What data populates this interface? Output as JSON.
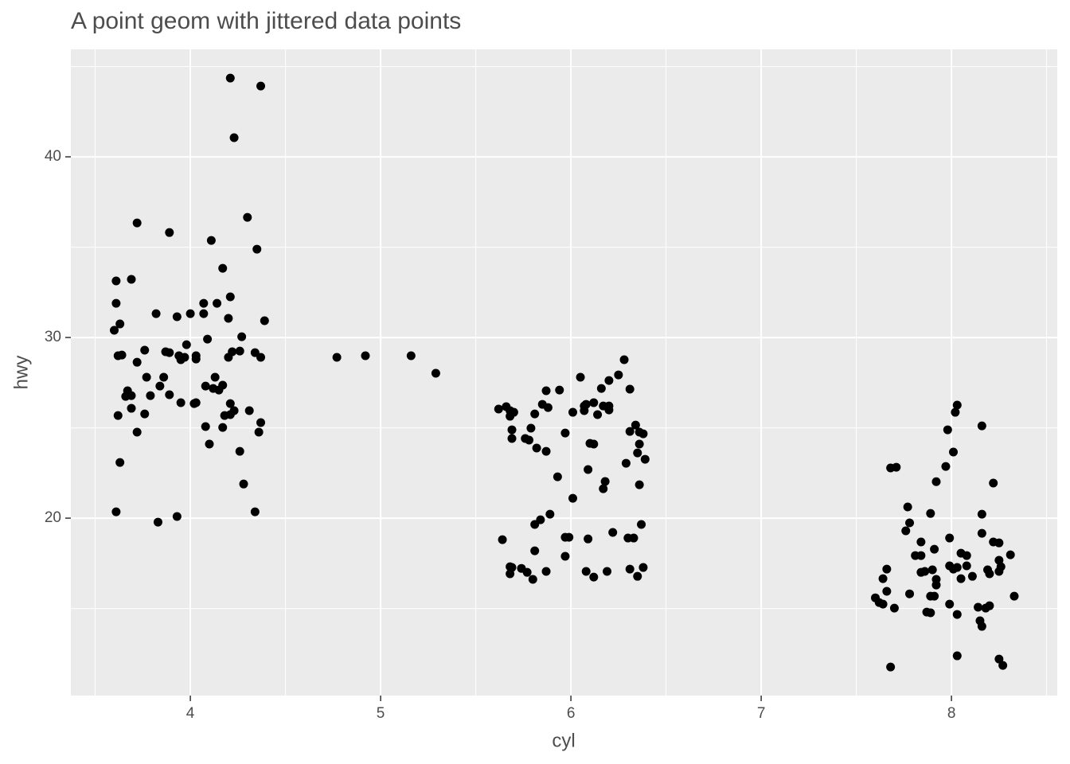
{
  "chart_data": {
    "type": "scatter",
    "title": "A point geom with jittered data points",
    "x_label": "cyl",
    "y_label": "hwy",
    "color": "#000000",
    "grid": true,
    "xlim": [
      3.372,
      8.556
    ],
    "ylim": [
      10.18,
      45.95
    ],
    "xticks": [
      4,
      5,
      6,
      7,
      8
    ],
    "yticks": [
      20,
      30,
      40
    ],
    "x": [
      4.21,
      4.37,
      4.23,
      4.3,
      3.72,
      3.89,
      4.11,
      4.35,
      4.17,
      3.61,
      3.69,
      4.21,
      3.61,
      4.07,
      4.14,
      3.63,
      4.39,
      3.82,
      3.93,
      4.0,
      4.07,
      4.2,
      3.6,
      4.27,
      4.09,
      3.98,
      3.76,
      3.87,
      3.89,
      3.94,
      4.03,
      4.22,
      4.26,
      4.34,
      3.62,
      3.64,
      3.72,
      3.95,
      3.97,
      4.03,
      4.2,
      4.37,
      3.77,
      3.86,
      4.13,
      3.84,
      4.08,
      4.12,
      4.15,
      4.17,
      3.67,
      3.66,
      3.69,
      3.79,
      3.89,
      3.95,
      4.02,
      4.03,
      4.21,
      3.69,
      4.31,
      3.76,
      3.62,
      4.23,
      4.18,
      4.21,
      4.37,
      4.08,
      4.17,
      3.72,
      4.36,
      4.1,
      3.63,
      4.26,
      4.28,
      3.61,
      4.34,
      3.93,
      3.83,
      4.77,
      4.92,
      5.16,
      5.29,
      6.28,
      6.05,
      6.25,
      6.2,
      6.16,
      6.31,
      5.87,
      5.94,
      5.85,
      5.88,
      5.62,
      5.66,
      5.68,
      5.7,
      5.68,
      5.81,
      6.01,
      6.07,
      6.08,
      6.12,
      6.14,
      6.17,
      6.2,
      6.2,
      6.07,
      6.34,
      5.69,
      5.79,
      5.97,
      6.31,
      6.36,
      6.38,
      5.76,
      5.78,
      5.69,
      6.1,
      6.12,
      6.36,
      5.82,
      5.87,
      6.35,
      6.39,
      6.29,
      6.09,
      5.93,
      6.18,
      6.17,
      6.36,
      6.01,
      5.89,
      5.84,
      5.81,
      6.37,
      6.22,
      5.97,
      5.99,
      6.3,
      6.33,
      6.09,
      5.64,
      5.81,
      5.97,
      5.68,
      5.69,
      5.74,
      5.77,
      5.87,
      5.68,
      6.08,
      6.19,
      6.31,
      6.38,
      5.8,
      6.12,
      6.35,
      8.03,
      8.02,
      8.16,
      7.98,
      8.01,
      7.97,
      7.68,
      7.71,
      7.92,
      8.22,
      7.77,
      7.89,
      8.16,
      7.78,
      7.76,
      8.16,
      7.99,
      7.84,
      8.22,
      8.25,
      7.91,
      7.81,
      7.84,
      8.05,
      8.08,
      8.31,
      8.25,
      7.99,
      8.08,
      7.66,
      8.01,
      8.03,
      7.9,
      7.86,
      7.84,
      8.19,
      8.26,
      8.2,
      8.25,
      8.11,
      8.05,
      7.92,
      7.64,
      7.92,
      7.78,
      7.66,
      7.89,
      7.91,
      8.33,
      7.6,
      7.62,
      7.64,
      7.99,
      8.14,
      8.18,
      8.2,
      7.7,
      7.87,
      7.89,
      8.03,
      8.15,
      8.16,
      8.03,
      8.25,
      8.27,
      7.68
    ],
    "values": [
      44.36,
      43.92,
      41.06,
      36.65,
      36.34,
      35.81,
      35.37,
      34.89,
      33.83,
      33.13,
      33.22,
      32.25,
      31.89,
      31.89,
      31.89,
      30.75,
      30.93,
      31.32,
      31.15,
      31.32,
      31.32,
      31.06,
      30.4,
      30.04,
      29.91,
      29.6,
      29.3,
      29.21,
      29.16,
      28.99,
      28.99,
      29.21,
      29.25,
      29.16,
      28.99,
      29.03,
      28.63,
      28.77,
      28.9,
      28.81,
      28.9,
      28.9,
      27.8,
      27.8,
      27.8,
      27.31,
      27.31,
      27.18,
      27.09,
      27.36,
      27.05,
      26.74,
      26.78,
      26.78,
      26.83,
      26.39,
      26.34,
      26.39,
      26.34,
      26.08,
      25.95,
      25.77,
      25.68,
      25.95,
      25.68,
      25.73,
      25.29,
      25.07,
      25.02,
      24.76,
      24.76,
      24.1,
      23.08,
      23.7,
      21.89,
      20.35,
      20.35,
      20.09,
      19.78,
      28.9,
      28.99,
      28.99,
      28.02,
      28.77,
      27.8,
      27.93,
      27.62,
      27.18,
      27.14,
      27.05,
      27.09,
      26.3,
      26.12,
      26.04,
      26.17,
      25.95,
      25.86,
      25.64,
      25.77,
      25.86,
      25.95,
      26.3,
      26.39,
      25.73,
      26.21,
      26.21,
      25.99,
      26.21,
      25.15,
      24.89,
      24.98,
      24.71,
      24.8,
      24.76,
      24.67,
      24.41,
      24.32,
      24.41,
      24.14,
      24.1,
      24.1,
      23.88,
      23.7,
      23.61,
      23.26,
      23.04,
      22.69,
      22.29,
      22.03,
      21.63,
      21.85,
      21.1,
      20.22,
      19.91,
      19.65,
      19.65,
      19.21,
      18.94,
      18.94,
      18.9,
      18.9,
      18.85,
      18.81,
      18.19,
      17.89,
      17.31,
      17.27,
      17.22,
      17.0,
      17.05,
      16.92,
      17.05,
      17.05,
      17.18,
      17.27,
      16.61,
      16.74,
      16.78,
      26.26,
      25.86,
      25.11,
      24.89,
      23.66,
      22.86,
      22.78,
      22.82,
      22.02,
      21.94,
      20.62,
      20.26,
      20.22,
      19.74,
      19.3,
      19.16,
      18.9,
      18.68,
      18.68,
      18.63,
      18.28,
      17.93,
      17.93,
      18.06,
      17.93,
      17.97,
      17.67,
      17.36,
      17.36,
      17.18,
      17.18,
      17.27,
      17.14,
      17.05,
      17.0,
      17.14,
      17.31,
      16.92,
      17.05,
      16.78,
      16.65,
      16.61,
      16.65,
      16.3,
      15.81,
      15.95,
      15.68,
      15.68,
      15.68,
      15.59,
      15.33,
      15.24,
      15.24,
      15.07,
      15.02,
      15.15,
      15.02,
      14.8,
      14.76,
      14.67,
      14.32,
      14.01,
      12.38,
      12.2,
      11.85,
      11.76
    ]
  }
}
